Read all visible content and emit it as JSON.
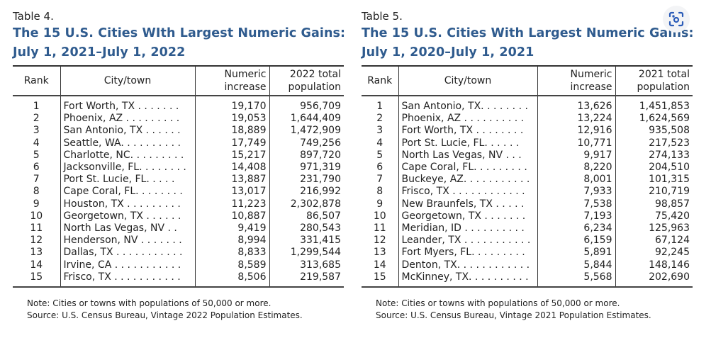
{
  "tables": [
    {
      "label": "Table 4.",
      "title1": "The 15 U.S. Cities WIth Largest Numeric Gains:",
      "title2": "July 1, 2021–July 1, 2022",
      "headers": {
        "rank": "Rank",
        "city": "City/town",
        "inc1": "Numeric",
        "inc2": "increase",
        "pop1": "2022 total",
        "pop2": "population"
      },
      "rows": [
        [
          "1",
          "Fort Worth, TX . . . . . . .",
          "19,170",
          "956,709"
        ],
        [
          "2",
          "Phoenix, AZ . . . . . . . . .",
          "19,053",
          "1,644,409"
        ],
        [
          "3",
          "San Antonio, TX . . . . . .",
          "18,889",
          "1,472,909"
        ],
        [
          "4",
          "Seattle, WA. . . . . . . . . .",
          "17,749",
          "749,256"
        ],
        [
          "5",
          "Charlotte, NC. . . . . . . . .",
          "15,217",
          "897,720"
        ],
        [
          "6",
          "Jacksonville, FL. . . . . . . .",
          "14,408",
          "971,319"
        ],
        [
          "7",
          "Port St. Lucie, FL. . . . .",
          "13,887",
          "231,790"
        ],
        [
          "8",
          "Cape Coral, FL. . . . . . . .",
          "13,017",
          "216,992"
        ],
        [
          "9",
          "Houston, TX . . . . . . . . .",
          "11,223",
          "2,302,878"
        ],
        [
          "10",
          "Georgetown, TX . . . . . .",
          "10,887",
          "86,507"
        ],
        [
          "11",
          "North Las Vegas, NV . .",
          "9,419",
          "280,543"
        ],
        [
          "12",
          "Henderson, NV . . . . . . .",
          "8,994",
          "331,415"
        ],
        [
          "13",
          "Dallas, TX . . . . . . . . . . .",
          "8,833",
          "1,299,544"
        ],
        [
          "14",
          "Irvine, CA . . . . . . . . . . .",
          "8,589",
          "313,685"
        ],
        [
          "15",
          "Frisco, TX . . . . . . . . . . .",
          "8,506",
          "219,587"
        ]
      ],
      "note": "Note: Cities or towns with populations of 50,000 or more.",
      "source": "Source: U.S. Census Bureau, Vintage 2022 Population Estimates."
    },
    {
      "label": "Table 5.",
      "title1": "The 15 U.S. Cities With Largest Numeric Gains:",
      "title2": "July 1, 2020–July 1, 2021",
      "headers": {
        "rank": "Rank",
        "city": "City/town",
        "inc1": "Numeric",
        "inc2": "increase",
        "pop1": "2021 total",
        "pop2": "population"
      },
      "rows": [
        [
          "1",
          "San Antonio, TX. . . . . . . .",
          "13,626",
          "1,451,853"
        ],
        [
          "2",
          "Phoenix, AZ . . . . . . . . . .",
          "13,224",
          "1,624,569"
        ],
        [
          "3",
          "Fort Worth, TX . . . . . . . .",
          "12,916",
          "935,508"
        ],
        [
          "4",
          "Port St. Lucie, FL. . . . . .",
          "10,771",
          "217,523"
        ],
        [
          "5",
          "North Las Vegas, NV . . .",
          "9,917",
          "274,133"
        ],
        [
          "6",
          "Cape Coral, FL. . . . . . . . .",
          "8,220",
          "204,510"
        ],
        [
          "7",
          "Buckeye, AZ. . . . . . . . . . .",
          "8,001",
          "101,315"
        ],
        [
          "8",
          "Frisco, TX . . . . . . . . . . . .",
          "7,933",
          "210,719"
        ],
        [
          "9",
          "New Braunfels, TX . . . . .",
          "7,538",
          "98,857"
        ],
        [
          "10",
          "Georgetown, TX . . . . . . .",
          "7,193",
          "75,420"
        ],
        [
          "11",
          "Meridian, ID . . . . . . . . . .",
          "6,234",
          "125,963"
        ],
        [
          "12",
          "Leander, TX . . . . . . . . . . .",
          "6,159",
          "67,124"
        ],
        [
          "13",
          "Fort Myers, FL. . . . . . . . .",
          "5,891",
          "92,245"
        ],
        [
          "14",
          "Denton, TX. . . . . . . . . . . .",
          "5,844",
          "148,146"
        ],
        [
          "15",
          "McKinney, TX. . . . . . . . . .",
          "5,568",
          "202,690"
        ]
      ],
      "note": "Note: Cities or towns with populations of 50,000 or more.",
      "source": "Source: U.S. Census Bureau, Vintage 2021 Population Estimates."
    }
  ],
  "icons": {
    "lens": "visual-search-icon"
  }
}
